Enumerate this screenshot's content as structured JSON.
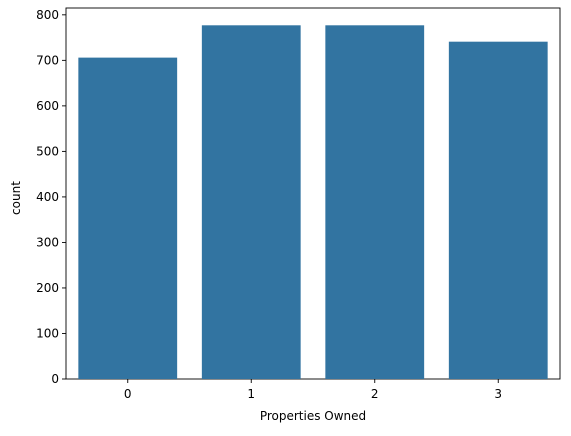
{
  "chart_data": {
    "type": "bar",
    "title": "",
    "xlabel": "Properties Owned",
    "ylabel": "count",
    "categories": [
      "0",
      "1",
      "2",
      "3"
    ],
    "values": [
      706,
      777,
      777,
      741
    ],
    "ylim": [
      0,
      815
    ],
    "yticks": [
      0,
      100,
      200,
      300,
      400,
      500,
      600,
      700,
      800
    ],
    "bar_color": "#3274a1",
    "grid": false,
    "legend": "none"
  }
}
